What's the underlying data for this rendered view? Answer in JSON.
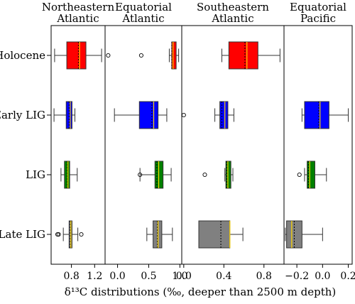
{
  "chart_data": {
    "type": "boxplot",
    "xlabel": "δ¹³C distributions (‰, deeper than 2500 m depth)",
    "ylabel": "",
    "categories": [
      "Holocene",
      "Early LIG",
      "LIG",
      "Late LIG"
    ],
    "colors": {
      "Holocene": "#ff0000",
      "Early LIG": "#0000ff",
      "LIG": "#008000",
      "Late LIG": "#808080",
      "median": "#ffd700",
      "mean": "#000000"
    },
    "panels": [
      {
        "title": [
          "Northeastern",
          "Atlantic"
        ],
        "xlim": [
          0.45,
          1.38
        ],
        "ticks": [
          {
            "value": 0.8,
            "label": "0.8"
          },
          {
            "value": 1.2,
            "label": "1.2"
          }
        ],
        "boxes": [
          {
            "category": "Holocene",
            "q1": 0.72,
            "median": 0.94,
            "q3": 1.05,
            "mean": 0.92,
            "wlow": 0.51,
            "whigh": 1.32,
            "outliers": []
          },
          {
            "category": "Early LIG",
            "q1": 0.71,
            "median": 0.78,
            "q3": 0.81,
            "mean": 0.76,
            "wlow": 0.5,
            "whigh": 0.86,
            "outliers": []
          },
          {
            "category": "LIG",
            "q1": 0.68,
            "median": 0.74,
            "q3": 0.77,
            "mean": 0.73,
            "wlow": 0.62,
            "whigh": 0.9,
            "outliers": []
          },
          {
            "category": "Late LIG",
            "q1": 0.76,
            "median": 0.79,
            "q3": 0.81,
            "mean": 0.78,
            "wlow": 0.66,
            "whigh": 0.91,
            "outliers": [
              0.56,
              0.58,
              0.97
            ]
          }
        ]
      },
      {
        "title": [
          "Equatorial",
          "Atlantic"
        ],
        "xlim": [
          -0.2,
          1.03
        ],
        "ticks": [
          {
            "value": 0.0,
            "label": "0.0"
          },
          {
            "value": 0.5,
            "label": "0.5"
          },
          {
            "value": 1.0,
            "label": "1.0"
          }
        ],
        "boxes": [
          {
            "category": "Holocene",
            "q1": 0.87,
            "median": 0.89,
            "q3": 0.94,
            "mean": 0.87,
            "wlow": 0.83,
            "whigh": 0.98,
            "outliers": [
              -0.15,
              0.38
            ]
          },
          {
            "category": "Early LIG",
            "q1": 0.35,
            "median": 0.58,
            "q3": 0.65,
            "mean": 0.55,
            "wlow": -0.05,
            "whigh": 0.79,
            "outliers": []
          },
          {
            "category": "LIG",
            "q1": 0.6,
            "median": 0.66,
            "q3": 0.73,
            "mean": 0.63,
            "wlow": 0.36,
            "whigh": 0.86,
            "outliers": [
              0.36
            ]
          },
          {
            "category": "Late LIG",
            "q1": 0.57,
            "median": 0.65,
            "q3": 0.71,
            "mean": 0.64,
            "wlow": 0.47,
            "whigh": 0.88,
            "outliers": []
          }
        ]
      },
      {
        "title": [
          "Southeastern",
          "Atlantic"
        ],
        "xlim": [
          -0.02,
          1.0
        ],
        "ticks": [
          {
            "value": 0.0,
            "label": "0.0"
          },
          {
            "value": 0.4,
            "label": "0.4"
          },
          {
            "value": 0.8,
            "label": "0.8"
          }
        ],
        "boxes": [
          {
            "category": "Holocene",
            "q1": 0.45,
            "median": 0.63,
            "q3": 0.74,
            "mean": 0.61,
            "wlow": 0.38,
            "whigh": 0.96,
            "outliers": []
          },
          {
            "category": "Early LIG",
            "q1": 0.36,
            "median": 0.41,
            "q3": 0.44,
            "mean": 0.38,
            "wlow": 0.31,
            "whigh": 0.5,
            "outliers": [
              0.0
            ]
          },
          {
            "category": "LIG",
            "q1": 0.42,
            "median": 0.44,
            "q3": 0.47,
            "mean": 0.43,
            "wlow": 0.41,
            "whigh": 0.49,
            "outliers": [
              0.21
            ]
          },
          {
            "category": "Late LIG",
            "q1": 0.15,
            "median": 0.46,
            "q3": 0.46,
            "mean": 0.37,
            "wlow": 0.15,
            "whigh": 0.59,
            "outliers": []
          }
        ]
      },
      {
        "title": [
          "Equatorial",
          "Pacific"
        ],
        "xlim": [
          -0.3,
          0.23
        ],
        "ticks": [
          {
            "value": -0.2,
            "label": "−0.2"
          },
          {
            "value": 0.0,
            "label": "0.0"
          },
          {
            "value": 0.2,
            "label": "0.2"
          }
        ],
        "boxes": [
          {
            "category": "Holocene",
            "q1": null,
            "median": null,
            "q3": null,
            "mean": null,
            "wlow": null,
            "whigh": null,
            "outliers": []
          },
          {
            "category": "Early LIG",
            "q1": -0.14,
            "median": -0.02,
            "q3": 0.05,
            "mean": -0.03,
            "wlow": -0.16,
            "whigh": 0.2,
            "outliers": []
          },
          {
            "category": "LIG",
            "q1": -0.12,
            "median": -0.1,
            "q3": -0.06,
            "mean": -0.11,
            "wlow": -0.14,
            "whigh": 0.03,
            "outliers": [
              -0.18
            ]
          },
          {
            "category": "Late LIG",
            "q1": -0.28,
            "median": -0.24,
            "q3": -0.16,
            "mean": -0.22,
            "wlow": -0.29,
            "whigh": 0.0,
            "outliers": []
          }
        ]
      }
    ],
    "grid": false,
    "legend": "none"
  }
}
